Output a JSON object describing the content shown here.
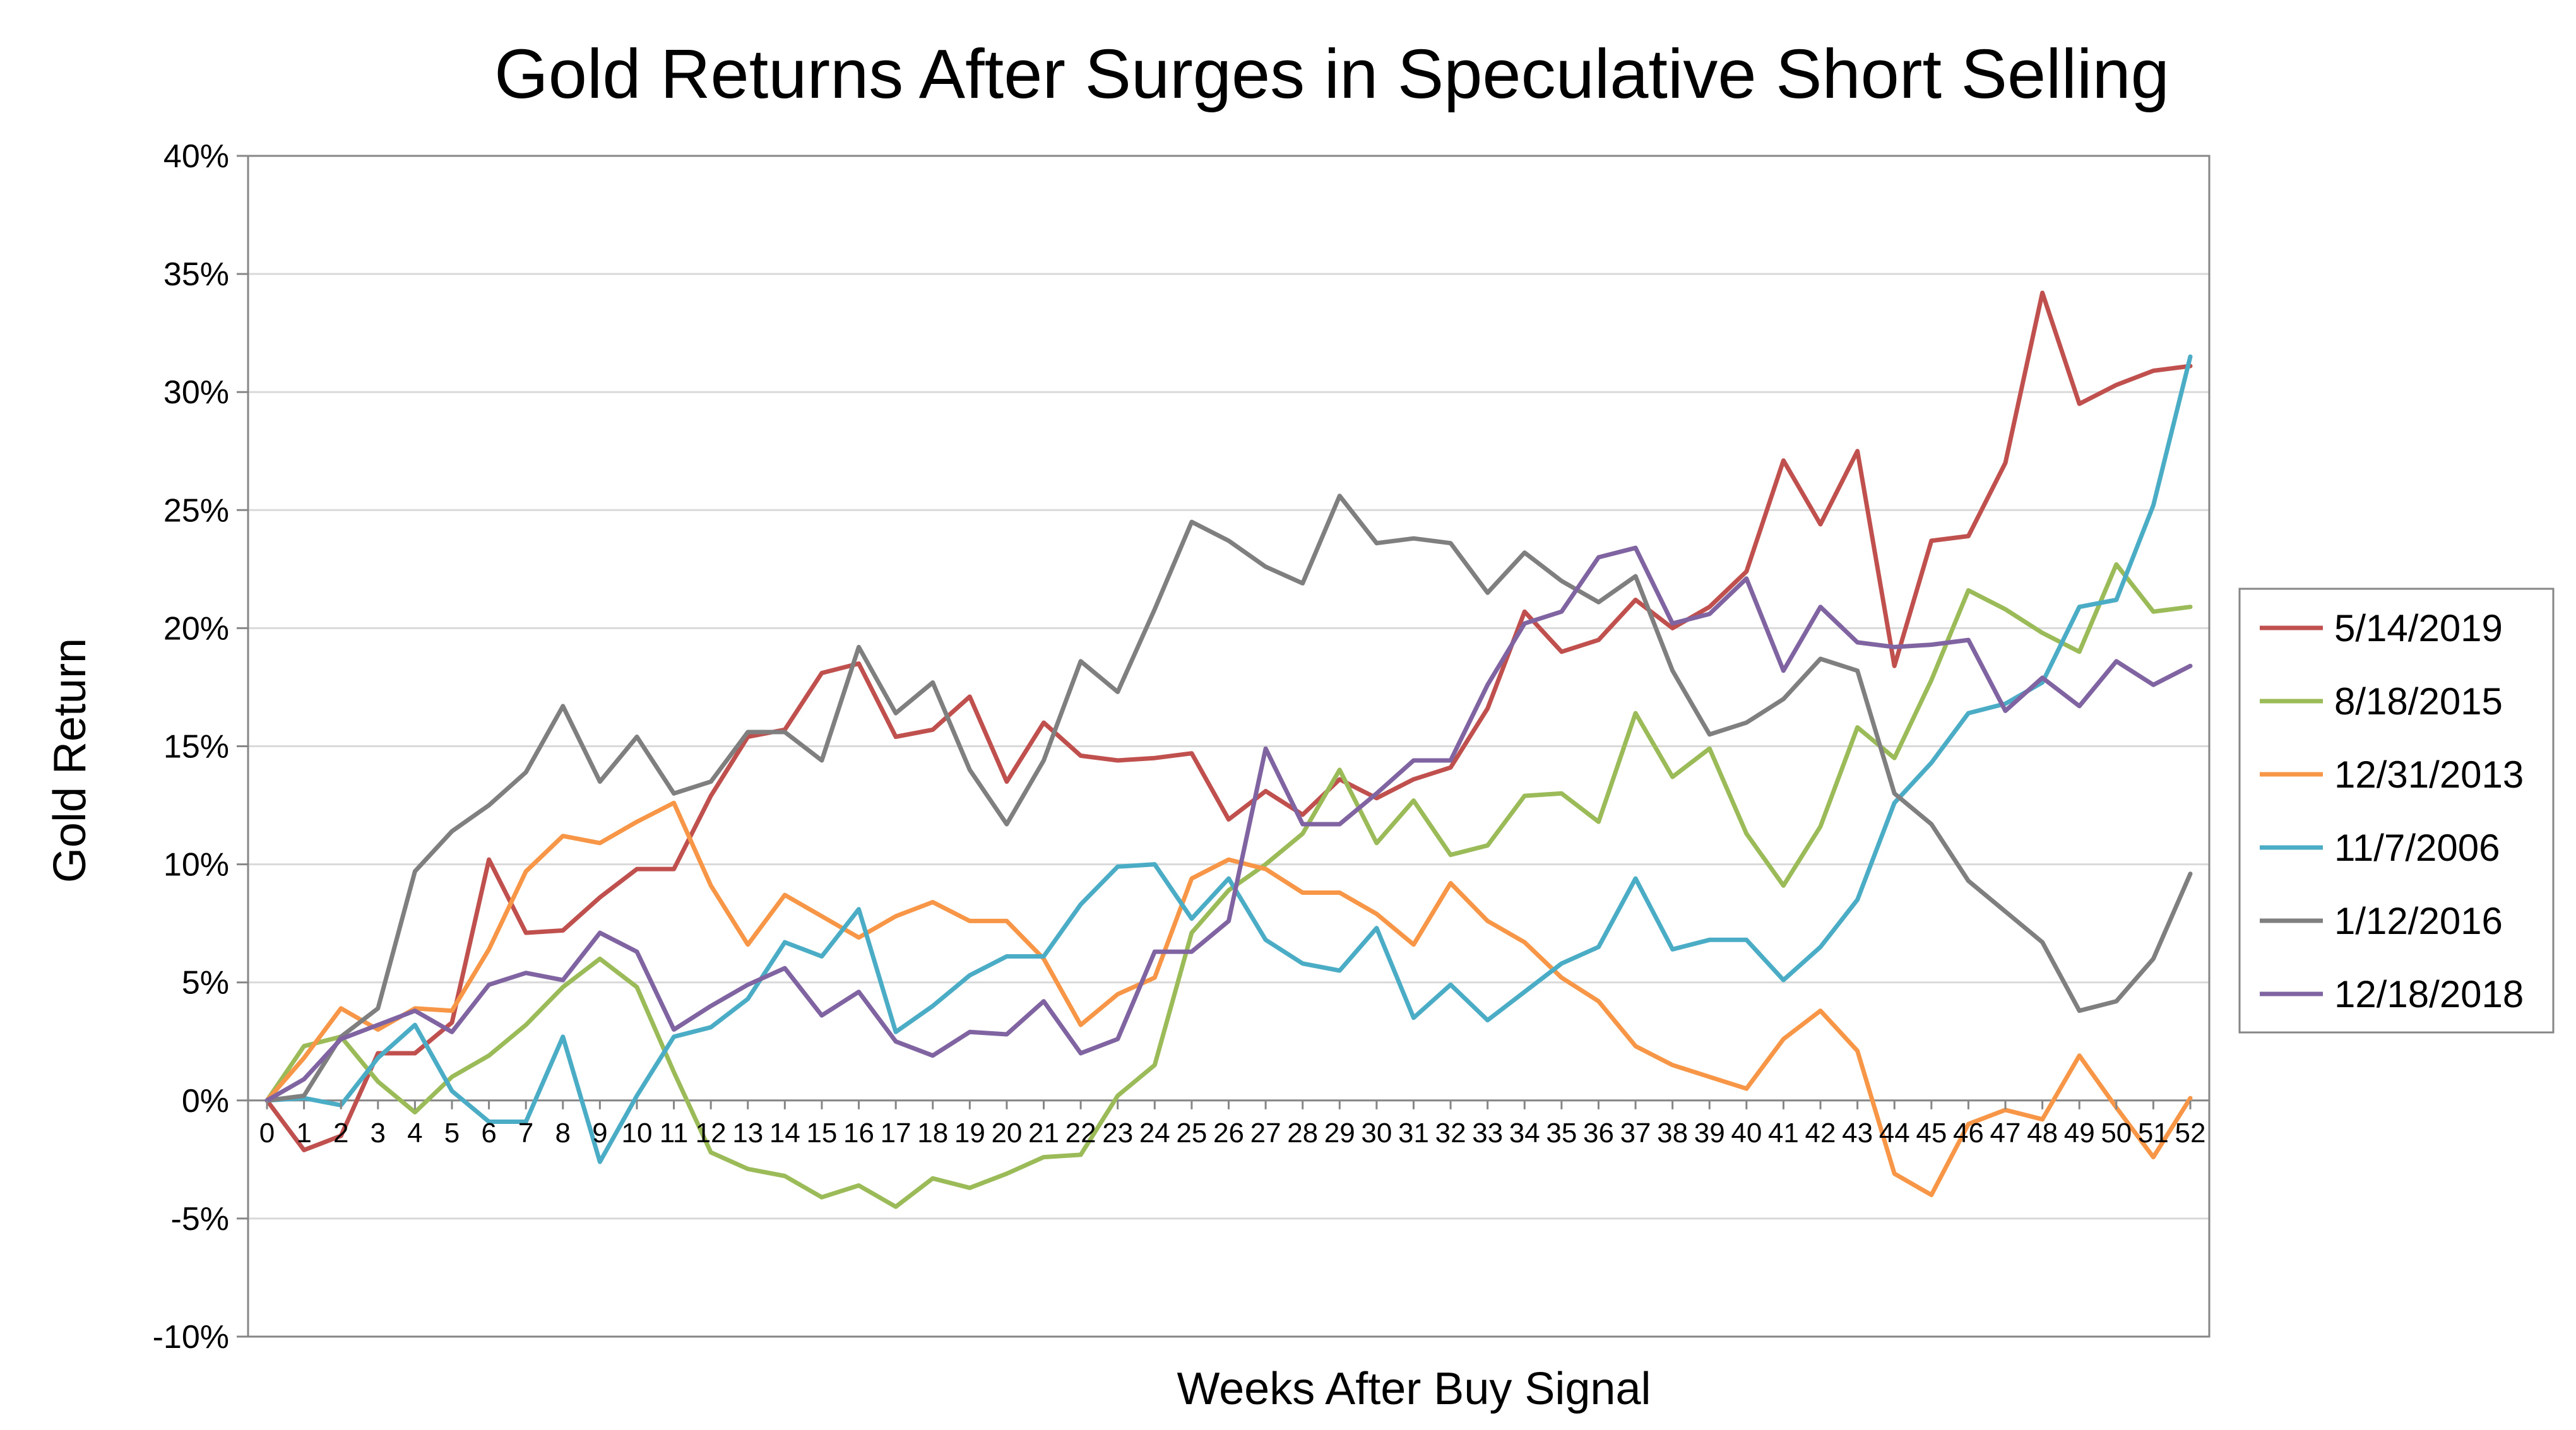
{
  "chart_data": {
    "type": "line",
    "title": "Gold Returns After Surges in Speculative Short Selling",
    "xlabel": "Weeks After Buy Signal",
    "ylabel": "Gold Return",
    "x": [
      0,
      1,
      2,
      3,
      4,
      5,
      6,
      7,
      8,
      9,
      10,
      11,
      12,
      13,
      14,
      15,
      16,
      17,
      18,
      19,
      20,
      21,
      22,
      23,
      24,
      25,
      26,
      27,
      28,
      29,
      30,
      31,
      32,
      33,
      34,
      35,
      36,
      37,
      38,
      39,
      40,
      41,
      42,
      43,
      44,
      45,
      46,
      47,
      48,
      49,
      50,
      51,
      52
    ],
    "ylim": [
      -10,
      40
    ],
    "yticks": [
      -10,
      -5,
      0,
      5,
      10,
      15,
      20,
      25,
      30,
      35,
      40
    ],
    "ytick_labels": [
      "-10%",
      "-5%",
      "0%",
      "5%",
      "10%",
      "15%",
      "20%",
      "25%",
      "30%",
      "35%",
      "40%"
    ],
    "grid": "horizontal",
    "legend_position": "right",
    "series": [
      {
        "name": "5/14/2019",
        "color": "#C0504D",
        "values": [
          0,
          -2.1,
          -1.5,
          2.0,
          2.0,
          3.3,
          10.2,
          7.1,
          7.2,
          8.6,
          9.8,
          9.8,
          12.9,
          15.4,
          15.7,
          18.1,
          18.5,
          15.4,
          15.7,
          17.1,
          13.5,
          16.0,
          14.6,
          14.4,
          14.5,
          14.7,
          11.9,
          13.1,
          12.1,
          13.6,
          12.8,
          13.6,
          14.1,
          16.6,
          20.7,
          19.0,
          19.5,
          21.2,
          20.0,
          20.9,
          22.4,
          27.1,
          24.4,
          27.5,
          18.4,
          23.7,
          23.9,
          27.0,
          34.2,
          29.5,
          30.3,
          30.9,
          31.1
        ]
      },
      {
        "name": "8/18/2015",
        "color": "#9BBB59",
        "values": [
          0,
          2.3,
          2.7,
          0.8,
          -0.5,
          1.0,
          1.9,
          3.2,
          4.8,
          6.0,
          4.8,
          1.2,
          -2.2,
          -2.9,
          -3.2,
          -4.1,
          -3.6,
          -4.5,
          -3.3,
          -3.7,
          -3.1,
          -2.4,
          -2.3,
          0.2,
          1.5,
          7.1,
          8.9,
          10.0,
          11.3,
          14.0,
          10.9,
          12.7,
          10.4,
          10.8,
          12.9,
          13.0,
          11.8,
          16.4,
          13.7,
          14.9,
          11.3,
          9.1,
          11.6,
          15.8,
          14.5,
          17.8,
          21.6,
          20.8,
          19.8,
          19.0,
          22.7,
          20.7,
          20.9
        ]
      },
      {
        "name": "12/31/2013",
        "color": "#F79646",
        "values": [
          0,
          1.8,
          3.9,
          3.0,
          3.9,
          3.8,
          6.4,
          9.7,
          11.2,
          10.9,
          11.8,
          12.6,
          9.1,
          6.6,
          8.7,
          7.8,
          6.9,
          7.8,
          8.4,
          7.6,
          7.6,
          6.0,
          3.2,
          4.5,
          5.2,
          9.4,
          10.2,
          9.8,
          8.8,
          8.8,
          7.9,
          6.6,
          9.2,
          7.6,
          6.7,
          5.2,
          4.2,
          2.3,
          1.5,
          1.0,
          0.5,
          2.6,
          3.8,
          2.1,
          -3.1,
          -4.0,
          -1.0,
          -0.4,
          -0.8,
          1.9,
          -0.3,
          -2.4,
          0.1
        ]
      },
      {
        "name": "11/7/2006",
        "color": "#4BACC6",
        "values": [
          0,
          0.1,
          -0.2,
          1.8,
          3.2,
          0.4,
          -0.9,
          -0.9,
          2.7,
          -2.6,
          0.2,
          2.7,
          3.1,
          4.3,
          6.7,
          6.1,
          8.1,
          2.9,
          4.0,
          5.3,
          6.1,
          6.1,
          8.3,
          9.9,
          10.0,
          7.7,
          9.4,
          6.8,
          5.8,
          5.5,
          7.3,
          3.5,
          4.9,
          3.4,
          4.6,
          5.8,
          6.5,
          9.4,
          6.4,
          6.8,
          6.8,
          5.1,
          6.5,
          8.5,
          12.6,
          14.3,
          16.4,
          16.8,
          17.7,
          20.9,
          21.2,
          25.2,
          31.5
        ]
      },
      {
        "name": "1/12/2016",
        "color": "#7F7F7F",
        "values": [
          0,
          0.2,
          2.7,
          3.9,
          9.7,
          11.4,
          12.5,
          13.9,
          16.7,
          13.5,
          15.4,
          13.0,
          13.5,
          15.6,
          15.6,
          14.4,
          19.2,
          16.4,
          17.7,
          14.0,
          11.7,
          14.4,
          18.6,
          17.3,
          20.8,
          24.5,
          23.7,
          22.6,
          21.9,
          25.6,
          23.6,
          23.8,
          23.6,
          21.5,
          23.2,
          22.0,
          21.1,
          22.2,
          18.2,
          15.5,
          16.0,
          17.0,
          18.7,
          18.2,
          13.0,
          11.7,
          9.3,
          8.0,
          6.7,
          3.8,
          4.2,
          6.0,
          9.6
        ]
      },
      {
        "name": "12/18/2018",
        "color": "#8064A2",
        "values": [
          0,
          0.9,
          2.6,
          3.2,
          3.8,
          2.9,
          4.9,
          5.4,
          5.1,
          7.1,
          6.3,
          3.0,
          4.0,
          4.9,
          5.6,
          3.6,
          4.6,
          2.5,
          1.9,
          2.9,
          2.8,
          4.2,
          2.0,
          2.6,
          6.3,
          6.3,
          7.6,
          14.9,
          11.7,
          11.7,
          13.0,
          14.4,
          14.4,
          17.6,
          20.2,
          20.7,
          23.0,
          23.4,
          20.2,
          20.6,
          22.1,
          18.2,
          20.9,
          19.4,
          19.2,
          19.3,
          19.5,
          16.5,
          17.9,
          16.7,
          18.6,
          17.6,
          18.4
        ]
      }
    ]
  }
}
